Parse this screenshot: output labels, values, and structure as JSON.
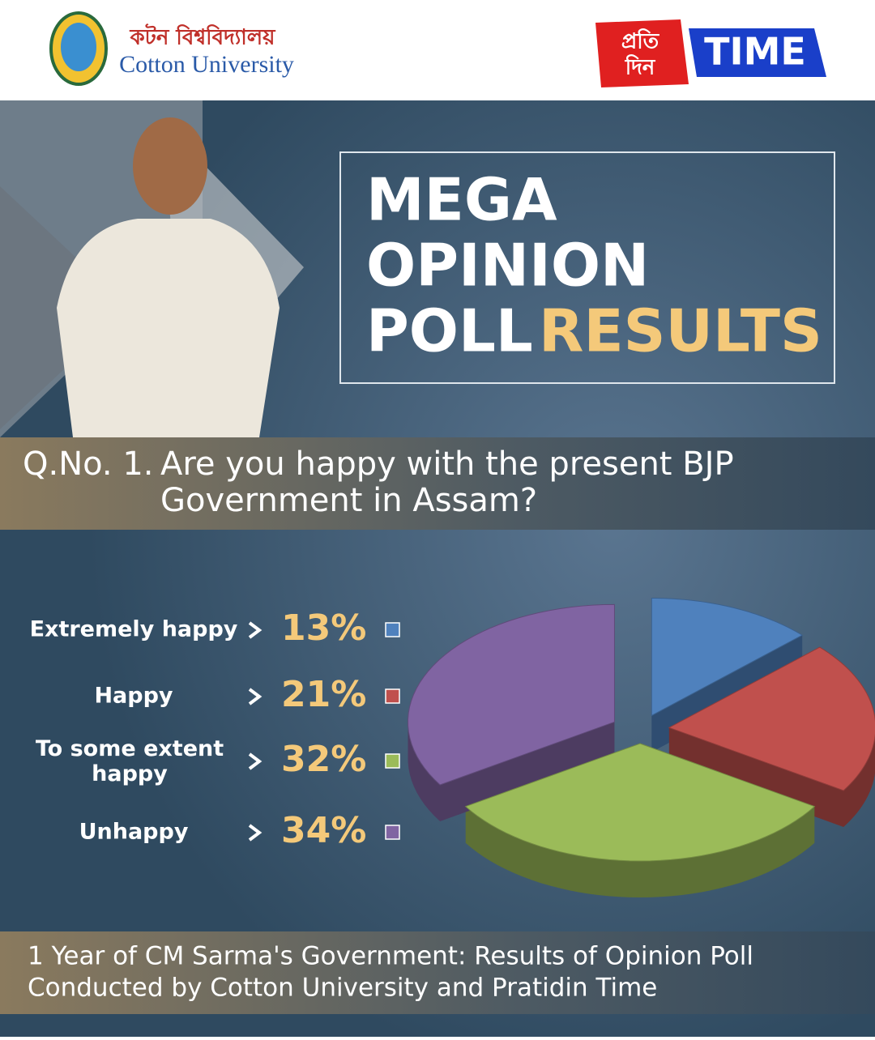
{
  "header": {
    "university_bengali": "কটন বিশ্ববিদ্যালয়",
    "university": "Cotton University",
    "brand_bengali_1": "প্রতি",
    "brand_bengali_2": "দিন",
    "brand": "TIME"
  },
  "headline": {
    "line1": "MEGA",
    "line2": "OPINION",
    "line3": "POLL",
    "highlight": "RESULTS"
  },
  "chart_data": {
    "type": "pie",
    "question_number": "Q.No. 1.",
    "title_line1": "Are you happy with the present BJP",
    "title_line2": "Government in Assam?",
    "categories": [
      "Extremely happy",
      "Happy",
      "To some extent happy",
      "Unhappy"
    ],
    "values": [
      13,
      21,
      32,
      34
    ],
    "value_labels": [
      "13%",
      "21%",
      "32%",
      "34%"
    ],
    "colors": [
      "#4f81bd",
      "#c0504d",
      "#9bbb59",
      "#8064a2"
    ]
  },
  "footer": {
    "line1": "1 Year of CM Sarma's Government: Results of Opinion Poll",
    "line2": "Conducted by Cotton University and Pratidin Time"
  }
}
